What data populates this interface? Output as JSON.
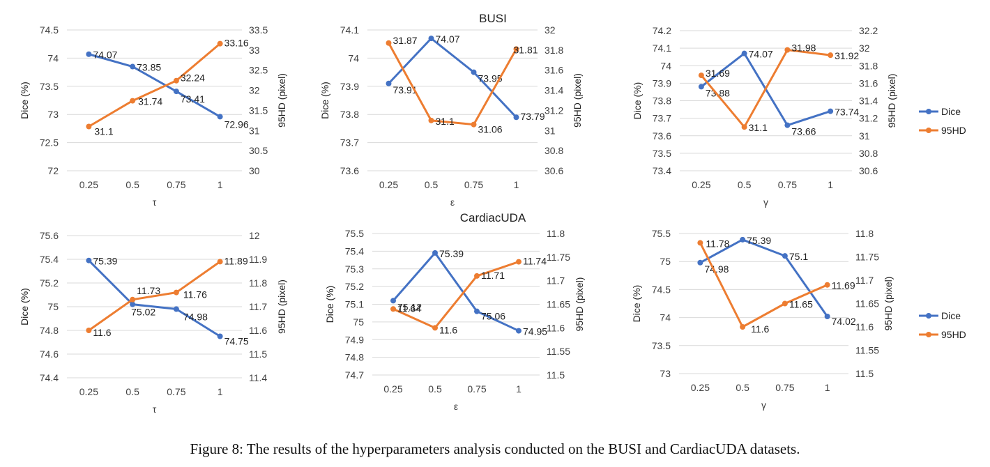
{
  "caption": "Figure 8: The results of the hyperparameters analysis conducted on the BUSI and CardiacUDA datasets.",
  "colors": {
    "dice": "#4472C4",
    "hd": "#ED7D31",
    "grid": "#D9D9D9",
    "text": "#404040"
  },
  "legend": {
    "dice": "Dice",
    "hd": "95HD"
  },
  "chart_data": [
    {
      "type": "line",
      "title": "",
      "xlabel": "τ",
      "ylabel": "Dice (%)",
      "y2label": "95HD (pixel)",
      "categories": [
        "0.25",
        "0.5",
        "0.75",
        "1"
      ],
      "ylim": [
        72,
        74.5
      ],
      "yticks": [
        "72",
        "72.5",
        "73",
        "73.5",
        "74",
        "74.5"
      ],
      "y2lim": [
        30,
        33.5
      ],
      "y2ticks": [
        "30",
        "30.5",
        "31",
        "31.5",
        "32",
        "32.5",
        "33",
        "33.5"
      ],
      "series": [
        {
          "name": "Dice",
          "values": [
            74.07,
            73.85,
            73.41,
            72.96
          ],
          "labels": [
            "74.07",
            "73.85",
            "73.41",
            "72.96"
          ]
        },
        {
          "name": "95HD",
          "values": [
            31.1,
            31.74,
            32.24,
            33.16
          ],
          "labels": [
            "31.1",
            "31.74",
            "32.24",
            "33.16"
          ]
        }
      ],
      "legend_visible": false
    },
    {
      "type": "line",
      "title": "BUSI",
      "xlabel": "ε",
      "ylabel": "Dice (%)",
      "y2label": "95HD (pixel)",
      "categories": [
        "0.25",
        "0.5",
        "0.75",
        "1"
      ],
      "ylim": [
        73.6,
        74.1
      ],
      "yticks": [
        "73.6",
        "73.7",
        "73.8",
        "73.9",
        "74",
        "74.1"
      ],
      "y2lim": [
        30.6,
        32
      ],
      "y2ticks": [
        "30.6",
        "30.8",
        "31",
        "31.2",
        "31.4",
        "31.6",
        "31.8",
        "32"
      ],
      "series": [
        {
          "name": "Dice",
          "values": [
            73.91,
            74.07,
            73.95,
            73.79
          ],
          "labels": [
            "73.91",
            "74.07",
            "73.95",
            "73.79"
          ]
        },
        {
          "name": "95HD",
          "values": [
            31.87,
            31.1,
            31.06,
            31.81
          ],
          "labels": [
            "31.87",
            "31.1",
            "31.06",
            "31.81"
          ]
        }
      ],
      "legend_visible": false
    },
    {
      "type": "line",
      "title": "",
      "xlabel": "γ",
      "ylabel": "Dice (%)",
      "y2label": "95HD (pixel)",
      "categories": [
        "0.25",
        "0.5",
        "0.75",
        "1"
      ],
      "ylim": [
        73.4,
        74.2
      ],
      "yticks": [
        "73.4",
        "73.5",
        "73.6",
        "73.7",
        "73.8",
        "73.9",
        "74",
        "74.1",
        "74.2"
      ],
      "y2lim": [
        30.6,
        32.2
      ],
      "y2ticks": [
        "30.6",
        "30.8",
        "31",
        "31.2",
        "31.4",
        "31.6",
        "31.8",
        "32",
        "32.2"
      ],
      "series": [
        {
          "name": "Dice",
          "values": [
            73.88,
            74.07,
            73.66,
            73.74
          ],
          "labels": [
            "73.88",
            "74.07",
            "73.66",
            "73.74"
          ]
        },
        {
          "name": "95HD",
          "values": [
            31.69,
            31.1,
            31.98,
            31.92
          ],
          "labels": [
            "31.69",
            "31.1",
            "31.98",
            "31.92"
          ]
        }
      ],
      "legend_visible": true
    },
    {
      "type": "line",
      "title": "",
      "xlabel": "τ",
      "ylabel": "Dice (%)",
      "y2label": "95HD (pixel)",
      "categories": [
        "0.25",
        "0.5",
        "0.75",
        "1"
      ],
      "ylim": [
        74.4,
        75.6
      ],
      "yticks": [
        "74.4",
        "74.6",
        "74.8",
        "75",
        "75.2",
        "75.4",
        "75.6"
      ],
      "y2lim": [
        11.4,
        12
      ],
      "y2ticks": [
        "11.4",
        "11.5",
        "11.6",
        "11.7",
        "11.8",
        "11.9",
        "12"
      ],
      "series": [
        {
          "name": "Dice",
          "values": [
            75.39,
            75.02,
            74.98,
            74.75
          ],
          "labels": [
            "75.39",
            "75.02",
            "74.98",
            "74.75"
          ]
        },
        {
          "name": "95HD",
          "values": [
            11.6,
            11.73,
            11.76,
            11.89
          ],
          "labels": [
            "11.6",
            "11.73",
            "11.76",
            "11.89"
          ]
        }
      ],
      "legend_visible": false
    },
    {
      "type": "line",
      "title": "CardiacUDA",
      "xlabel": "ε",
      "ylabel": "Dice (%)",
      "y2label": "95HD (pixel)",
      "categories": [
        "0.25",
        "0.5",
        "0.75",
        "1"
      ],
      "ylim": [
        74.7,
        75.5
      ],
      "yticks": [
        "74.7",
        "74.8",
        "74.9",
        "75",
        "75.1",
        "75.2",
        "75.3",
        "75.4",
        "75.5"
      ],
      "y2lim": [
        11.5,
        11.8
      ],
      "y2ticks": [
        "11.5",
        "11.55",
        "11.6",
        "11.65",
        "11.7",
        "11.75",
        "11.8"
      ],
      "series": [
        {
          "name": "Dice",
          "values": [
            75.12,
            75.39,
            75.06,
            74.95
          ],
          "labels": [
            "75.12",
            "75.39",
            "75.06",
            "74.95"
          ]
        },
        {
          "name": "95HD",
          "values": [
            11.64,
            11.6,
            11.71,
            11.74
          ],
          "labels": [
            "11.64",
            "11.6",
            "11.71",
            "11.74"
          ]
        }
      ],
      "legend_visible": false
    },
    {
      "type": "line",
      "title": "",
      "xlabel": "γ",
      "ylabel": "Dice (%)",
      "y2label": "95HD (pixel)",
      "categories": [
        "0.25",
        "0.5",
        "0.75",
        "1"
      ],
      "ylim": [
        73,
        75.5
      ],
      "yticks": [
        "73",
        "73.5",
        "74",
        "74.5",
        "75",
        "75.5"
      ],
      "y2lim": [
        11.5,
        11.8
      ],
      "y2ticks": [
        "11.5",
        "11.55",
        "11.6",
        "11.65",
        "11.7",
        "11.75",
        "11.8"
      ],
      "series": [
        {
          "name": "Dice",
          "values": [
            74.98,
            75.39,
            75.1,
            74.02
          ],
          "labels": [
            "74.98",
            "75.39",
            "75.1",
            "74.02"
          ]
        },
        {
          "name": "95HD",
          "values": [
            11.78,
            11.6,
            11.65,
            11.69
          ],
          "labels": [
            "11.78",
            "11.6",
            "11.65",
            "11.69"
          ]
        }
      ],
      "legend_visible": true
    }
  ]
}
